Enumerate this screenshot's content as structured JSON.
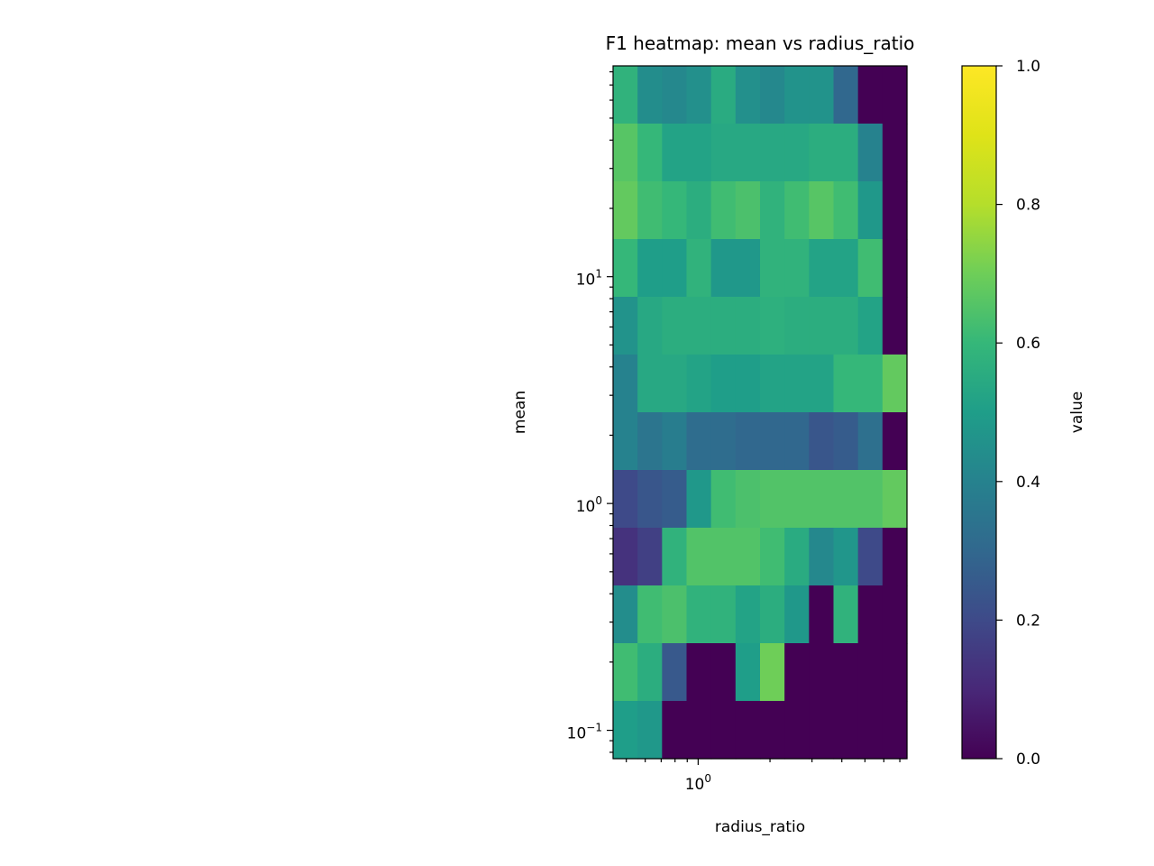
{
  "chart_data": {
    "type": "heatmap",
    "title": "F1 heatmap: mean vs radius_ratio",
    "xlabel": "radius_ratio",
    "ylabel": "mean",
    "x_scale": "log",
    "y_scale": "log",
    "xlim": [
      0.44,
      7.5
    ],
    "ylim": [
      0.075,
      85
    ],
    "x_tick_labels": [
      {
        "value": 1,
        "mantissa": "10",
        "exp": "0"
      }
    ],
    "y_tick_labels": [
      {
        "value": 0.1,
        "mantissa": "10",
        "exp": "−1"
      },
      {
        "value": 1,
        "mantissa": "10",
        "exp": "0"
      },
      {
        "value": 10,
        "mantissa": "10",
        "exp": "1"
      }
    ],
    "colorbar": {
      "label": "value",
      "colormap": "viridis",
      "range": [
        0,
        1
      ],
      "ticks": [
        "0.0",
        "0.2",
        "0.4",
        "0.6",
        "0.8",
        "1.0"
      ]
    },
    "x_bin_count": 12,
    "y_bin_count": 12,
    "values_rows_top_to_bottom": [
      [
        0.58,
        0.44,
        0.42,
        0.45,
        0.55,
        0.45,
        0.42,
        0.46,
        0.46,
        0.3,
        0.0,
        0.0
      ],
      [
        0.66,
        0.6,
        0.52,
        0.52,
        0.54,
        0.54,
        0.54,
        0.54,
        0.56,
        0.56,
        0.4,
        0.0
      ],
      [
        0.68,
        0.62,
        0.6,
        0.56,
        0.62,
        0.64,
        0.58,
        0.62,
        0.66,
        0.62,
        0.48,
        0.0
      ],
      [
        0.6,
        0.5,
        0.5,
        0.58,
        0.48,
        0.48,
        0.58,
        0.58,
        0.52,
        0.52,
        0.62,
        0.0
      ],
      [
        0.46,
        0.54,
        0.56,
        0.56,
        0.56,
        0.56,
        0.57,
        0.56,
        0.56,
        0.56,
        0.52,
        0.0
      ],
      [
        0.4,
        0.54,
        0.54,
        0.52,
        0.5,
        0.5,
        0.52,
        0.52,
        0.52,
        0.6,
        0.6,
        0.68
      ],
      [
        0.4,
        0.35,
        0.38,
        0.32,
        0.32,
        0.3,
        0.3,
        0.3,
        0.24,
        0.26,
        0.33,
        0.0
      ],
      [
        0.2,
        0.24,
        0.26,
        0.48,
        0.62,
        0.64,
        0.65,
        0.65,
        0.65,
        0.65,
        0.65,
        0.68
      ],
      [
        0.13,
        0.17,
        0.58,
        0.65,
        0.65,
        0.65,
        0.62,
        0.55,
        0.42,
        0.47,
        0.2,
        0.0
      ],
      [
        0.44,
        0.62,
        0.64,
        0.58,
        0.58,
        0.52,
        0.56,
        0.48,
        0.0,
        0.58,
        0.0,
        0.0
      ],
      [
        0.62,
        0.56,
        0.25,
        0.0,
        0.0,
        0.5,
        0.7,
        0.0,
        0.0,
        0.0,
        0.0,
        0.0
      ],
      [
        0.5,
        0.48,
        0.0,
        0.0,
        0.0,
        0.0,
        0.0,
        0.0,
        0.0,
        0.0,
        0.0,
        0.0
      ]
    ]
  }
}
